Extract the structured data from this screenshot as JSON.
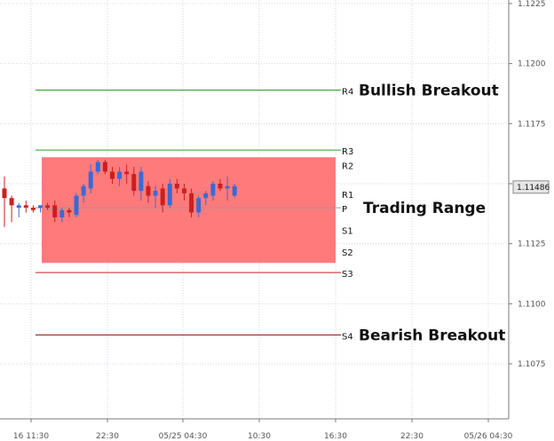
{
  "chart_data": {
    "type": "candlestick",
    "title": "",
    "xlabel": "",
    "ylabel": "",
    "x_ticks": [
      "16 11:30",
      "22:30",
      "05/25 04:30",
      "10:30",
      "16:30",
      "22:30",
      "05/26 04:30"
    ],
    "y_ticks": [
      "1.1225",
      "1.1200",
      "1.1175",
      "1.1150",
      "1.1125",
      "1.1100",
      "1.1075"
    ],
    "y_tick_values": [
      1.1225,
      1.12,
      1.1175,
      1.115,
      1.1125,
      1.11,
      1.1075
    ],
    "ylim": [
      1.105,
      1.1225
    ],
    "grid": true,
    "last_price_label": "1.11486",
    "last_price": 1.11486,
    "candle_colors": {
      "up": "#3a6ad6",
      "down": "#cc1f1f"
    },
    "candles": [
      {
        "time": "11:30",
        "open": 1.1148,
        "high": 1.1153,
        "low": 1.1132,
        "close": 1.1144
      },
      {
        "time": "13:30",
        "open": 1.1144,
        "high": 1.1145,
        "low": 1.1134,
        "close": 1.1141
      },
      {
        "time": "14:30",
        "open": 1.114,
        "high": 1.1142,
        "low": 1.1136,
        "close": 1.1141
      },
      {
        "time": "15:30",
        "open": 1.1141,
        "high": 1.1143,
        "low": 1.1138,
        "close": 1.114
      },
      {
        "time": "16:30",
        "open": 1.114,
        "high": 1.1141,
        "low": 1.1138,
        "close": 1.1139
      },
      {
        "time": "17:30",
        "open": 1.114,
        "high": 1.1141,
        "low": 1.1138,
        "close": 1.1141
      },
      {
        "time": "18:30",
        "open": 1.1141,
        "high": 1.1142,
        "low": 1.1139,
        "close": 1.114
      },
      {
        "time": "19:30",
        "open": 1.1141,
        "high": 1.1143,
        "low": 1.1134,
        "close": 1.1136
      },
      {
        "time": "20:30",
        "open": 1.1136,
        "high": 1.114,
        "low": 1.1134,
        "close": 1.1139
      },
      {
        "time": "21:30",
        "open": 1.1139,
        "high": 1.114,
        "low": 1.1136,
        "close": 1.1138
      },
      {
        "time": "22:30",
        "open": 1.1137,
        "high": 1.1146,
        "low": 1.1136,
        "close": 1.1145
      },
      {
        "time": "23:30",
        "open": 1.1145,
        "high": 1.115,
        "low": 1.1142,
        "close": 1.1149
      },
      {
        "time": "00:30",
        "open": 1.1148,
        "high": 1.1158,
        "low": 1.1146,
        "close": 1.1155
      },
      {
        "time": "01:30",
        "open": 1.1155,
        "high": 1.116,
        "low": 1.1154,
        "close": 1.1159
      },
      {
        "time": "02:30",
        "open": 1.1159,
        "high": 1.116,
        "low": 1.1154,
        "close": 1.1155
      },
      {
        "time": "03:30",
        "open": 1.1155,
        "high": 1.1157,
        "low": 1.115,
        "close": 1.1152
      },
      {
        "time": "04:30",
        "open": 1.1152,
        "high": 1.1157,
        "low": 1.1149,
        "close": 1.1155
      },
      {
        "time": "05:30",
        "open": 1.1155,
        "high": 1.1158,
        "low": 1.115,
        "close": 1.1154
      },
      {
        "time": "06:30",
        "open": 1.1154,
        "high": 1.1157,
        "low": 1.1145,
        "close": 1.1147
      },
      {
        "time": "07:30",
        "open": 1.1147,
        "high": 1.1157,
        "low": 1.1143,
        "close": 1.1155
      },
      {
        "time": "08:30",
        "open": 1.1149,
        "high": 1.1151,
        "low": 1.1142,
        "close": 1.1145
      },
      {
        "time": "09:30",
        "open": 1.1145,
        "high": 1.1149,
        "low": 1.114,
        "close": 1.1147
      },
      {
        "time": "10:30",
        "open": 1.1148,
        "high": 1.115,
        "low": 1.1138,
        "close": 1.1141
      },
      {
        "time": "11:30",
        "open": 1.1141,
        "high": 1.1152,
        "low": 1.114,
        "close": 1.115
      },
      {
        "time": "12:30",
        "open": 1.115,
        "high": 1.1152,
        "low": 1.1146,
        "close": 1.1148
      },
      {
        "time": "13:30",
        "open": 1.1148,
        "high": 1.115,
        "low": 1.1143,
        "close": 1.1146
      },
      {
        "time": "14:30",
        "open": 1.1146,
        "high": 1.1148,
        "low": 1.1136,
        "close": 1.1138
      },
      {
        "time": "15:30",
        "open": 1.1138,
        "high": 1.1145,
        "low": 1.1136,
        "close": 1.1144
      },
      {
        "time": "16:30",
        "open": 1.1144,
        "high": 1.1147,
        "low": 1.1141,
        "close": 1.1146
      },
      {
        "time": "17:30",
        "open": 1.1145,
        "high": 1.1151,
        "low": 1.1143,
        "close": 1.115
      },
      {
        "time": "18:30",
        "open": 1.115,
        "high": 1.1152,
        "low": 1.1147,
        "close": 1.1148
      },
      {
        "time": "19:30",
        "open": 1.1148,
        "high": 1.1153,
        "low": 1.1143,
        "close": 1.1149
      },
      {
        "time": "20:30",
        "open": 1.1145,
        "high": 1.115,
        "low": 1.1144,
        "close": 1.1149
      }
    ],
    "pivot_levels": [
      {
        "label": "R4",
        "value": 1.1189,
        "color": "#2aa02a"
      },
      {
        "label": "R3",
        "value": 1.1164,
        "color": "#2aa02a"
      },
      {
        "label": "R2",
        "value": 1.1158,
        "color": "",
        "line": false
      },
      {
        "label": "R1",
        "value": 1.1146,
        "color": "",
        "line": false
      },
      {
        "label": "P",
        "value": 1.114,
        "color": "#999999",
        "line": true
      },
      {
        "label": "S1",
        "value": 1.1131,
        "color": "",
        "line": false
      },
      {
        "label": "S2",
        "value": 1.1122,
        "color": "",
        "line": false
      },
      {
        "label": "S3",
        "value": 1.1113,
        "color": "#cc1f1f"
      },
      {
        "label": "S4",
        "value": 1.1087,
        "color": "#8b1a1a"
      }
    ],
    "range_box": {
      "top": 1.1161,
      "bottom": 1.1117,
      "color": "#ff7b7b"
    },
    "annotations": [
      {
        "text": "Bullish Breakout",
        "level": "R4"
      },
      {
        "text": "Trading Range",
        "level": "P"
      },
      {
        "text": "Bearish Breakout",
        "level": "S4"
      }
    ]
  }
}
